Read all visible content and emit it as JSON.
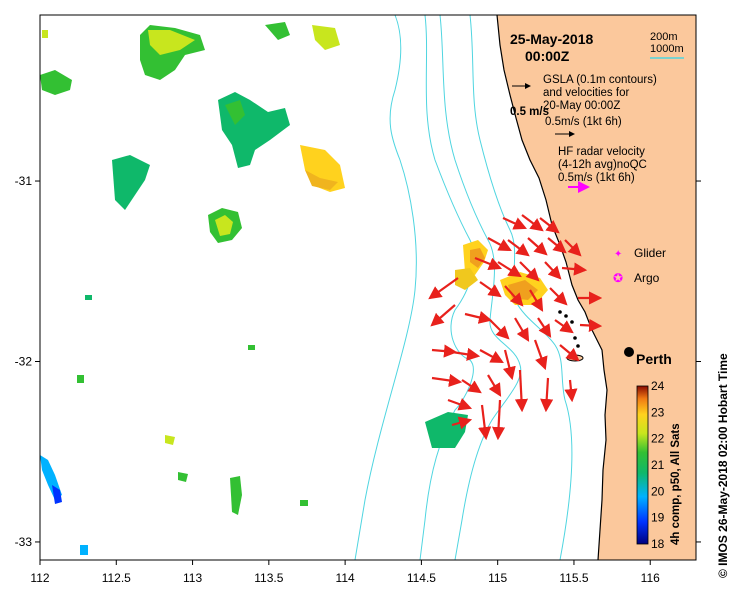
{
  "map": {
    "date": "25-May-2018",
    "time": "00:00Z",
    "legend_lines": [
      {
        "text": "200m",
        "color": "#000000"
      },
      {
        "text": "1000m",
        "color": "#4fd5e0"
      }
    ],
    "gsla": {
      "line1": "GSLA (0.1m contours)",
      "line2": "and velocities for",
      "line3": "20-May 00:00Z",
      "scale": "0.5m/s (1kt 6h)",
      "overlap_label": "0.5 m/s"
    },
    "hf_radar": {
      "line1": "HF radar velocity",
      "line2": "(4-12h avg)noQC",
      "scale": "0.5m/s (1kt 6h)",
      "arrow_color": "#ff00ff"
    },
    "markers": [
      {
        "label": "Glider",
        "symbol": "✦",
        "color": "#ff00ff"
      },
      {
        "label": "Argo",
        "symbol": "✪",
        "color": "#ff00ff"
      }
    ],
    "city": {
      "name": "Perth",
      "lon": 115.86,
      "lat": -31.95
    },
    "colorbar": {
      "label": "4h comp, p50, All Sats",
      "ticks": [
        "24",
        "23",
        "22",
        "21",
        "20",
        "19",
        "18"
      ],
      "vmin": 18,
      "vmax": 24
    },
    "side_credit": "© IMOS 26-May-2018 02:00 Hobart Time",
    "x_axis": {
      "ticks": [
        "112",
        "112.5",
        "113",
        "113.5",
        "114",
        "114.5",
        "115",
        "115.5",
        "116"
      ],
      "min": 112,
      "max": 116.3
    },
    "y_axis": {
      "ticks": [
        "-31",
        "-32",
        "-33"
      ],
      "min": -33.1,
      "max": -30.08
    },
    "colors": {
      "land": "#fbc89c",
      "shelf_contour": "#4fd5e0",
      "current_arrow": "#e8211c"
    }
  }
}
